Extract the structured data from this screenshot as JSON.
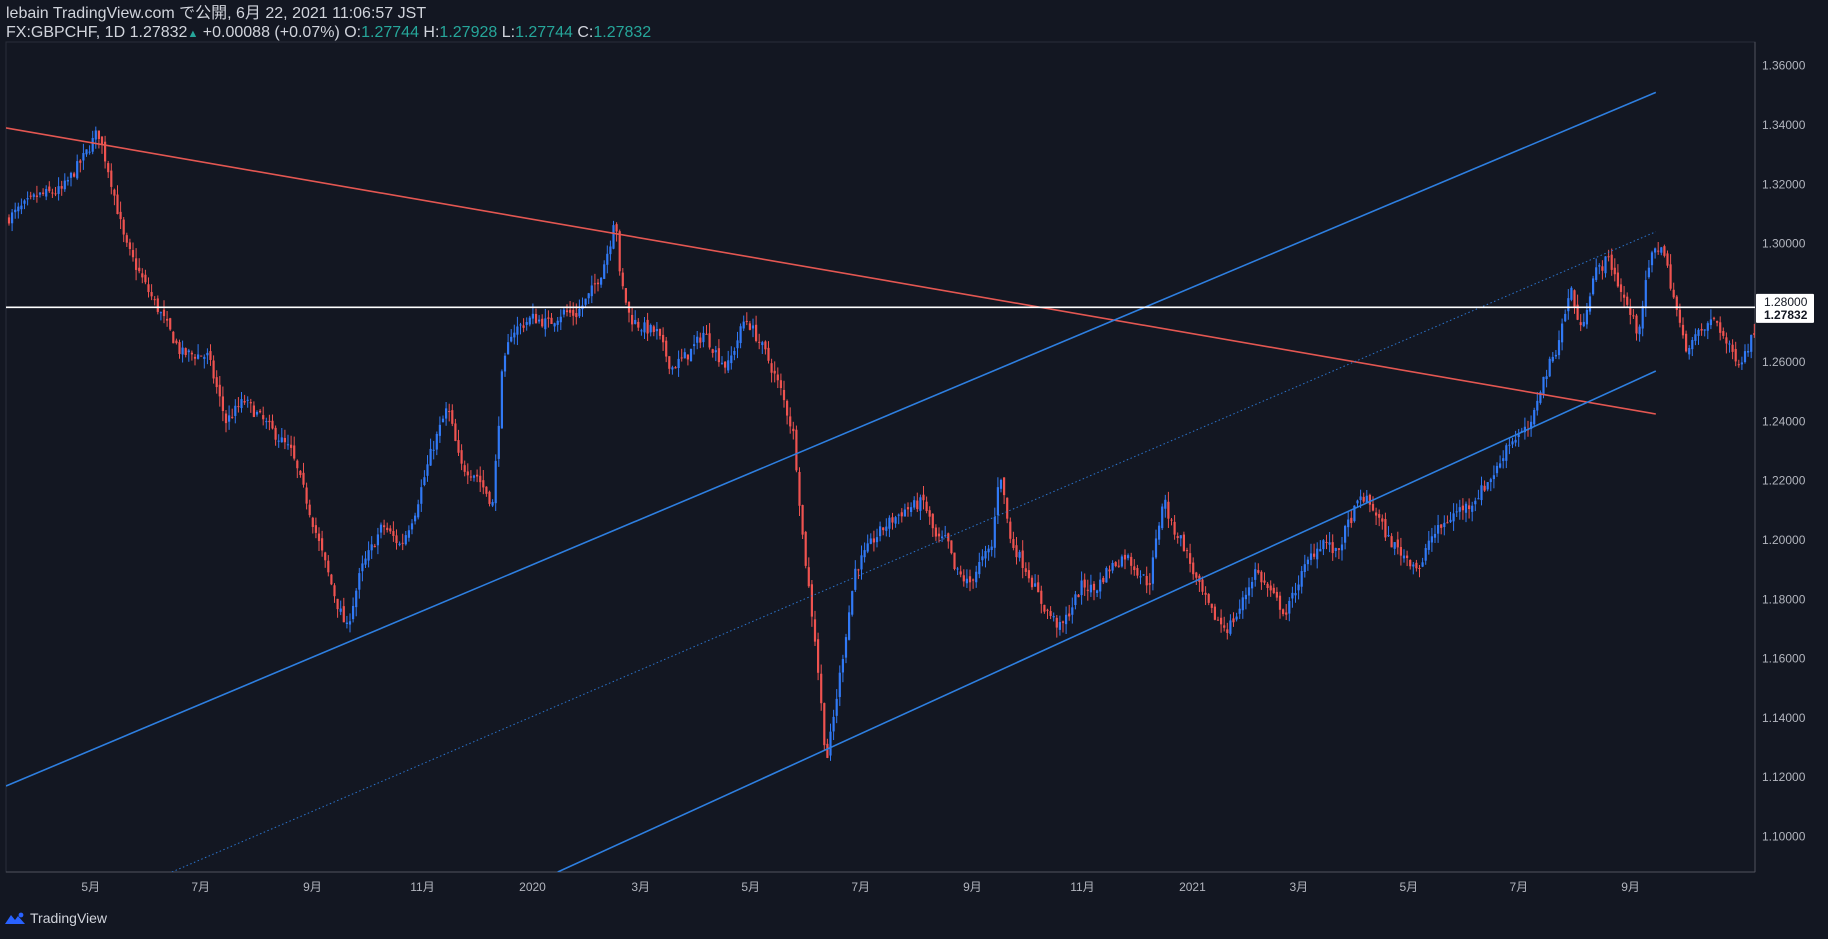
{
  "header": {
    "published": "lebain TradingView.com で公開, 6月 22, 2021 11:06:57 JST",
    "symbol": "FX:GBPCHF, 1D",
    "last": "1.27832",
    "change_arrow": "▲",
    "change": "+0.00088 (+0.07%)",
    "o_label": "O:",
    "o_value": "1.27744",
    "h_label": "H:",
    "h_value": "1.27928",
    "l_label": "L:",
    "l_value": "1.27744",
    "c_label": "C:",
    "c_value": "1.27832"
  },
  "footer": {
    "brand": "TradingView",
    "logo_icon": "tradingview-logo-icon"
  },
  "colors": {
    "background": "#131722",
    "up": "#3179f5",
    "down": "#ef5350",
    "blue_line": "#2e7fe0",
    "red_line": "#e45752",
    "hline": "#ffffff",
    "axis_text": "#b2b5be"
  },
  "chart_data": {
    "type": "candlestick",
    "symbol": "FX:GBPCHF",
    "interval": "1D",
    "x_tick_labels": [
      "5月",
      "7月",
      "9月",
      "11月",
      "2020",
      "3月",
      "5月",
      "7月",
      "9月",
      "11月",
      "2021",
      "3月",
      "5月",
      "7月",
      "9月"
    ],
    "x_tick_dates": [
      "2019-05",
      "2019-07",
      "2019-09",
      "2019-11",
      "2020-01",
      "2020-03",
      "2020-05",
      "2020-07",
      "2020-09",
      "2020-11",
      "2021-01",
      "2021-03",
      "2021-05",
      "2021-07",
      "2021-09"
    ],
    "y_tick_labels": [
      "1.36000",
      "1.34000",
      "1.32000",
      "1.30000",
      "1.28000",
      "1.26000",
      "1.24000",
      "1.22000",
      "1.20000",
      "1.18000",
      "1.16000",
      "1.14000",
      "1.12000",
      "1.10000"
    ],
    "ylim": [
      1.088,
      1.368
    ],
    "grid": false,
    "price_marks": [
      {
        "label": "1.28000",
        "value": 1.28
      },
      {
        "label": "1.27832",
        "value": 1.27832
      }
    ],
    "horizontal_line": {
      "value": 1.2785
    },
    "trendlines": [
      {
        "name": "resistance",
        "color": "red",
        "style": "solid",
        "from": [
          "2019-03-15",
          1.339
        ],
        "to": [
          "2021-09-15",
          1.2425
        ]
      },
      {
        "name": "channel-upper",
        "color": "blue",
        "style": "solid",
        "from": [
          "2019-03-15",
          1.117
        ],
        "to": [
          "2021-09-15",
          1.351
        ]
      },
      {
        "name": "channel-middle",
        "color": "blue",
        "style": "dotted",
        "from": [
          "2019-06-15",
          1.088
        ],
        "to": [
          "2021-09-15",
          1.304
        ]
      },
      {
        "name": "channel-lower",
        "color": "blue",
        "style": "solid",
        "from": [
          "2020-01-15",
          1.088
        ],
        "to": [
          "2021-09-15",
          1.257
        ]
      }
    ],
    "close_path": [
      [
        "2019-03-15",
        1.308
      ],
      [
        "2019-04-01",
        1.316
      ],
      [
        "2019-04-15",
        1.318
      ],
      [
        "2019-04-28",
        1.33
      ],
      [
        "2019-05-05",
        1.338
      ],
      [
        "2019-05-12",
        1.322
      ],
      [
        "2019-05-20",
        1.3
      ],
      [
        "2019-06-01",
        1.285
      ],
      [
        "2019-06-10",
        1.275
      ],
      [
        "2019-06-20",
        1.263
      ],
      [
        "2019-07-05",
        1.262
      ],
      [
        "2019-07-15",
        1.24
      ],
      [
        "2019-07-25",
        1.247
      ],
      [
        "2019-08-05",
        1.24
      ],
      [
        "2019-08-20",
        1.23
      ],
      [
        "2019-08-28",
        1.215
      ],
      [
        "2019-09-05",
        1.198
      ],
      [
        "2019-09-15",
        1.178
      ],
      [
        "2019-09-20",
        1.17
      ],
      [
        "2019-09-28",
        1.19
      ],
      [
        "2019-10-10",
        1.205
      ],
      [
        "2019-10-20",
        1.198
      ],
      [
        "2019-10-28",
        1.21
      ],
      [
        "2019-11-06",
        1.23
      ],
      [
        "2019-11-15",
        1.245
      ],
      [
        "2019-11-22",
        1.225
      ],
      [
        "2019-12-01",
        1.222
      ],
      [
        "2019-12-10",
        1.212
      ],
      [
        "2019-12-15",
        1.255
      ],
      [
        "2019-12-20",
        1.27
      ],
      [
        "2020-01-01",
        1.275
      ],
      [
        "2020-01-10",
        1.273
      ],
      [
        "2020-01-18",
        1.277
      ],
      [
        "2020-01-25",
        1.276
      ],
      [
        "2020-02-01",
        1.282
      ],
      [
        "2020-02-08",
        1.29
      ],
      [
        "2020-02-13",
        1.3
      ],
      [
        "2020-02-16",
        1.312
      ],
      [
        "2020-02-18",
        1.29
      ],
      [
        "2020-02-24",
        1.275
      ],
      [
        "2020-03-01",
        1.272
      ],
      [
        "2020-03-10",
        1.27
      ],
      [
        "2020-03-18",
        1.258
      ],
      [
        "2020-03-28",
        1.263
      ],
      [
        "2020-04-05",
        1.27
      ],
      [
        "2020-04-12",
        1.263
      ],
      [
        "2020-04-18",
        1.258
      ],
      [
        "2020-04-28",
        1.275
      ],
      [
        "2020-05-03",
        1.27
      ],
      [
        "2020-05-10",
        1.262
      ],
      [
        "2020-05-18",
        1.25
      ],
      [
        "2020-05-25",
        1.235
      ],
      [
        "2020-05-30",
        1.2
      ],
      [
        "2020-06-06",
        1.165
      ],
      [
        "2020-06-12",
        1.125
      ],
      [
        "2020-06-16",
        1.14
      ],
      [
        "2020-06-22",
        1.165
      ],
      [
        "2020-06-28",
        1.19
      ],
      [
        "2020-07-08",
        1.2
      ],
      [
        "2020-07-15",
        1.205
      ],
      [
        "2020-07-25",
        1.21
      ],
      [
        "2020-08-05",
        1.213
      ],
      [
        "2020-08-12",
        1.2
      ],
      [
        "2020-08-18",
        1.2
      ],
      [
        "2020-08-22",
        1.19
      ],
      [
        "2020-08-30",
        1.185
      ],
      [
        "2020-09-05",
        1.192
      ],
      [
        "2020-09-12",
        1.198
      ],
      [
        "2020-09-16",
        1.225
      ],
      [
        "2020-09-22",
        1.2
      ],
      [
        "2020-10-01",
        1.19
      ],
      [
        "2020-10-10",
        1.178
      ],
      [
        "2020-10-20",
        1.17
      ],
      [
        "2020-11-01",
        1.185
      ],
      [
        "2020-11-08",
        1.183
      ],
      [
        "2020-11-15",
        1.19
      ],
      [
        "2020-11-25",
        1.195
      ],
      [
        "2020-12-01",
        1.19
      ],
      [
        "2020-12-08",
        1.185
      ],
      [
        "2020-12-16",
        1.215
      ],
      [
        "2020-12-20",
        1.205
      ],
      [
        "2020-12-26",
        1.2
      ],
      [
        "2021-01-04",
        1.185
      ],
      [
        "2021-01-12",
        1.175
      ],
      [
        "2021-01-20",
        1.17
      ],
      [
        "2021-01-26",
        1.175
      ],
      [
        "2021-02-05",
        1.19
      ],
      [
        "2021-02-10",
        1.185
      ],
      [
        "2021-02-16",
        1.18
      ],
      [
        "2021-02-22",
        1.175
      ],
      [
        "2021-02-28",
        1.185
      ],
      [
        "2021-03-08",
        1.195
      ],
      [
        "2021-03-15",
        1.2
      ],
      [
        "2021-03-22",
        1.195
      ],
      [
        "2021-03-28",
        1.205
      ],
      [
        "2021-04-05",
        1.215
      ],
      [
        "2021-04-12",
        1.21
      ],
      [
        "2021-04-20",
        1.2
      ],
      [
        "2021-04-28",
        1.195
      ],
      [
        "2021-05-08",
        1.19
      ],
      [
        "2021-05-12",
        1.2
      ],
      [
        "2021-05-20",
        1.205
      ],
      [
        "2021-05-28",
        1.21
      ],
      [
        "2021-06-04",
        1.212
      ],
      [
        "2021-06-12",
        1.218
      ],
      [
        "2021-06-20",
        1.225
      ],
      [
        "2021-06-24",
        1.232
      ],
      [
        "2021-06-30",
        1.235
      ],
      [
        "2021-07-08",
        1.238
      ],
      [
        "2021-07-12",
        1.25
      ],
      [
        "2021-07-22",
        1.265
      ],
      [
        "2021-07-30",
        1.285
      ],
      [
        "2021-08-04",
        1.27
      ],
      [
        "2021-08-12",
        1.29
      ],
      [
        "2021-08-20",
        1.295
      ],
      [
        "2021-08-26",
        1.285
      ],
      [
        "2021-09-05",
        1.27
      ],
      [
        "2021-09-12",
        1.295
      ],
      [
        "2021-09-18",
        1.3
      ],
      [
        "2021-09-22",
        1.29
      ],
      [
        "2021-10-01",
        1.265
      ],
      [
        "2021-10-10",
        1.27
      ],
      [
        "2021-10-18",
        1.275
      ],
      [
        "2021-10-25",
        1.265
      ],
      [
        "2021-11-01",
        1.26
      ],
      [
        "2021-11-10",
        1.272
      ],
      [
        "2021-11-18",
        1.27
      ],
      [
        "2021-11-28",
        1.275
      ],
      [
        "2021-12-05",
        1.27
      ],
      [
        "2021-12-14",
        1.265
      ],
      [
        "2021-12-20",
        1.262
      ],
      [
        "2021-12-28",
        1.27
      ],
      [
        "2022-01-06",
        1.278
      ]
    ]
  }
}
